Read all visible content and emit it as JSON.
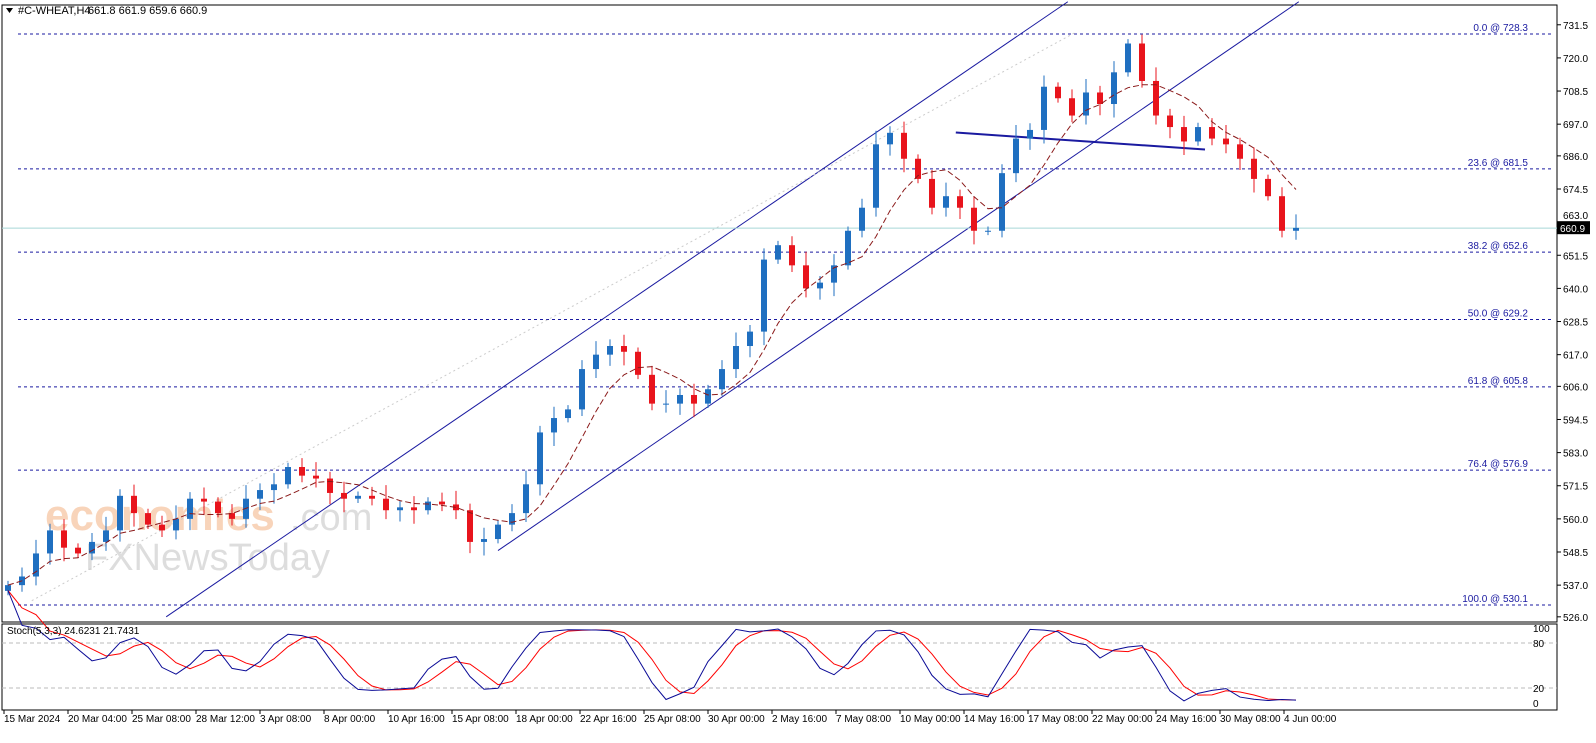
{
  "header": {
    "symbol": "#C-WHEAT,H4",
    "ohlc": "661.8 661.9 659.6 660.9"
  },
  "watermark": {
    "brand1": "economies.com",
    "brand2": "FXNewsToday"
  },
  "current_price": "660.9",
  "colors": {
    "up": "#1f6fc0",
    "down": "#e8141c",
    "fib": "#1a1aa0",
    "channel": "#1a1aa0",
    "ma": "#8b1a1a",
    "stoch_main": "#0a0a96",
    "stoch_signal": "#ff0000",
    "price_line": "#a8d8d8"
  },
  "chart_data": {
    "type": "candlestick",
    "title": "#C-WHEAT,H4",
    "ylim": [
      526.0,
      731.5
    ],
    "y_ticks": [
      "731.5",
      "720.0",
      "708.5",
      "697.0",
      "686.0",
      "674.5",
      "663.0",
      "651.5",
      "640.0",
      "628.5",
      "617.0",
      "606.0",
      "594.5",
      "583.0",
      "571.5",
      "560.0",
      "548.5",
      "537.0",
      "526.0"
    ],
    "x_labels": [
      "15 Mar 2024",
      "20 Mar 04:00",
      "25 Mar 08:00",
      "28 Mar 12:00",
      "3 Apr 08:00",
      "8 Apr 00:00",
      "10 Apr 16:00",
      "15 Apr 08:00",
      "18 Apr 00:00",
      "22 Apr 16:00",
      "25 Apr 08:00",
      "30 Apr 00:00",
      "2 May 16:00",
      "7 May 08:00",
      "10 May 00:00",
      "14 May 16:00",
      "17 May 08:00",
      "22 May 00:00",
      "24 May 16:00",
      "30 May 08:00",
      "4 Jun 00:00"
    ],
    "closes": [
      537,
      540,
      548,
      556,
      550,
      548,
      552,
      556,
      568,
      562,
      558,
      556,
      560,
      567,
      566,
      562,
      560,
      567,
      570,
      572,
      578,
      575,
      574,
      569,
      567,
      568,
      567,
      563,
      564,
      563,
      566,
      565,
      563,
      552,
      553,
      558,
      562,
      572,
      590,
      595,
      598,
      612,
      617,
      620,
      618,
      610,
      600,
      600,
      603,
      600,
      605,
      612,
      620,
      625,
      650,
      655,
      648,
      640,
      642,
      648,
      660,
      668,
      690,
      694,
      685,
      678,
      668,
      672,
      668,
      660,
      660,
      680,
      692,
      695,
      710,
      706,
      700,
      708,
      704,
      715,
      725,
      712,
      700,
      696,
      691,
      696,
      692,
      690,
      685,
      678,
      672,
      660,
      661
    ],
    "fib_levels": [
      {
        "label": "0.0 @ 728.3",
        "price": 728.3
      },
      {
        "label": "23.6 @ 681.5",
        "price": 681.5
      },
      {
        "label": "38.2 @ 652.6",
        "price": 652.6
      },
      {
        "label": "50.0 @ 629.2",
        "price": 629.2
      },
      {
        "label": "61.8 @ 605.8",
        "price": 605.8
      },
      {
        "label": "76.4 @ 576.9",
        "price": 576.9
      },
      {
        "label": "100.0 @ 530.1",
        "price": 530.1
      }
    ],
    "trendlines": [
      {
        "name": "upper-channel",
        "from": [
          11.3,
          526.0
        ],
        "to": [
          75.7,
          739.5
        ],
        "style": "solid"
      },
      {
        "name": "lower-channel",
        "from": [
          35.0,
          549.0
        ],
        "to": [
          92.2,
          739.5
        ],
        "style": "solid"
      },
      {
        "name": "fib-base-line",
        "from": [
          1.7,
          531.6
        ],
        "to": [
          76.3,
          729.0
        ],
        "style": "dotted"
      },
      {
        "name": "neckline",
        "from": [
          67.7,
          694.1
        ],
        "to": [
          85.5,
          688.2
        ],
        "style": "thick"
      }
    ],
    "ma_period": 6,
    "stochastic": {
      "label": "Stoch(5,3,3) 24.6231 21.7431",
      "levels": [
        80,
        20
      ],
      "scale_labels": [
        "100",
        "80",
        "20",
        "0"
      ]
    }
  }
}
